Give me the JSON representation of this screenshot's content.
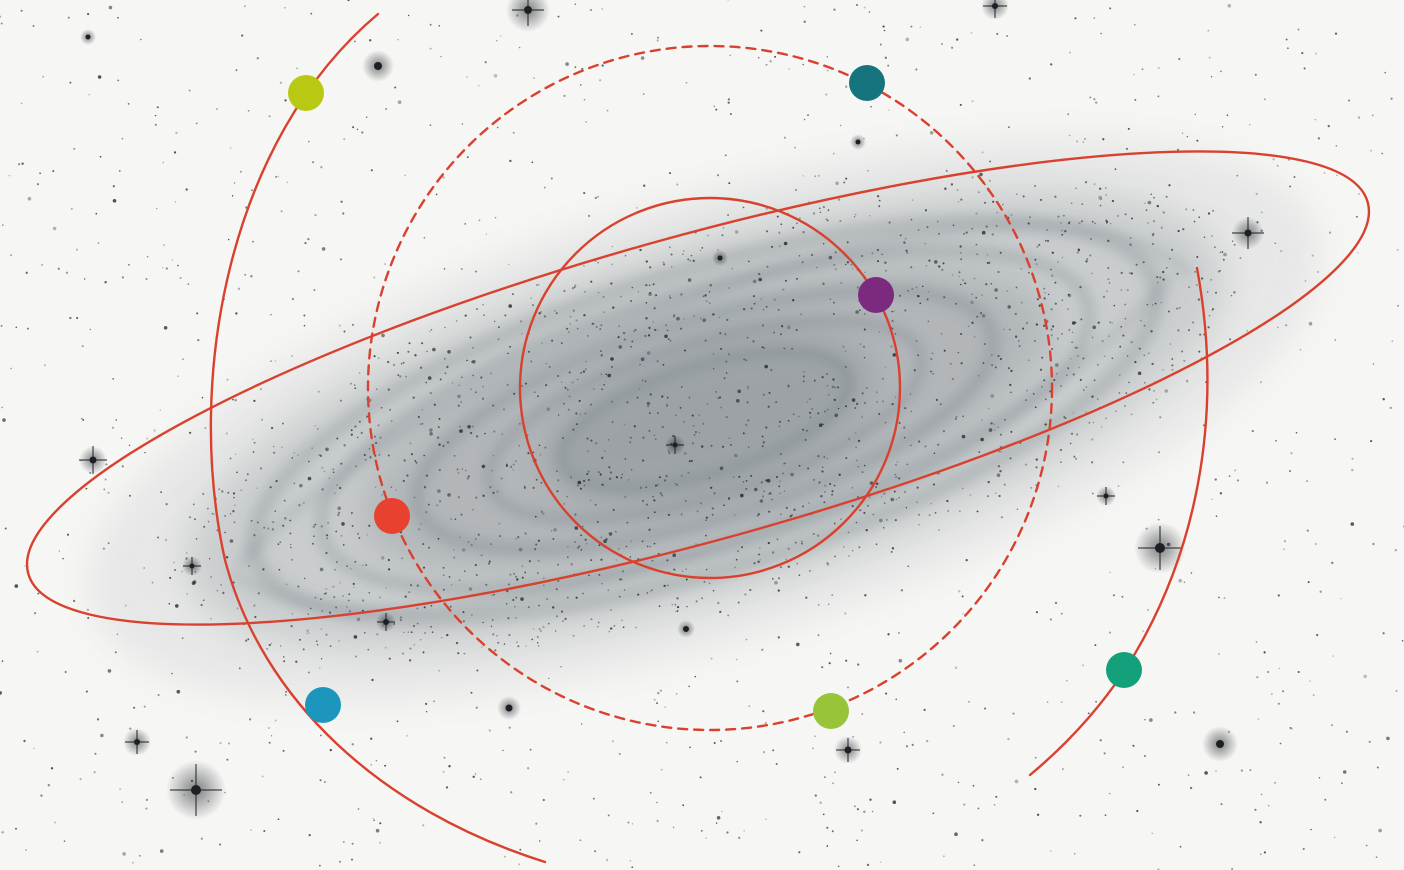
{
  "figure": {
    "subject": "galaxy-with-orbits",
    "background_color": "#f6f6f4",
    "galaxy_tint": "#5f6a72",
    "star_color": "#1c2024",
    "orbit_color": "#d9412f"
  },
  "orbits": [
    {
      "id": "outer-arc-left",
      "style": "solid"
    },
    {
      "id": "dashed-ring",
      "style": "dashed"
    },
    {
      "id": "inner-ring",
      "style": "solid"
    },
    {
      "id": "inclined-ellipse",
      "style": "solid"
    },
    {
      "id": "outer-arc-right",
      "style": "solid"
    }
  ],
  "markers": [
    {
      "id": "yellow-green-dot",
      "color": "#b9c913"
    },
    {
      "id": "teal-dot",
      "color": "#16747e"
    },
    {
      "id": "purple-dot",
      "color": "#7b2a7e"
    },
    {
      "id": "red-dot",
      "color": "#e8412f"
    },
    {
      "id": "blue-dot",
      "color": "#1d96bd"
    },
    {
      "id": "lime-dot",
      "color": "#98c43a"
    },
    {
      "id": "green-dot",
      "color": "#14a07a"
    }
  ]
}
